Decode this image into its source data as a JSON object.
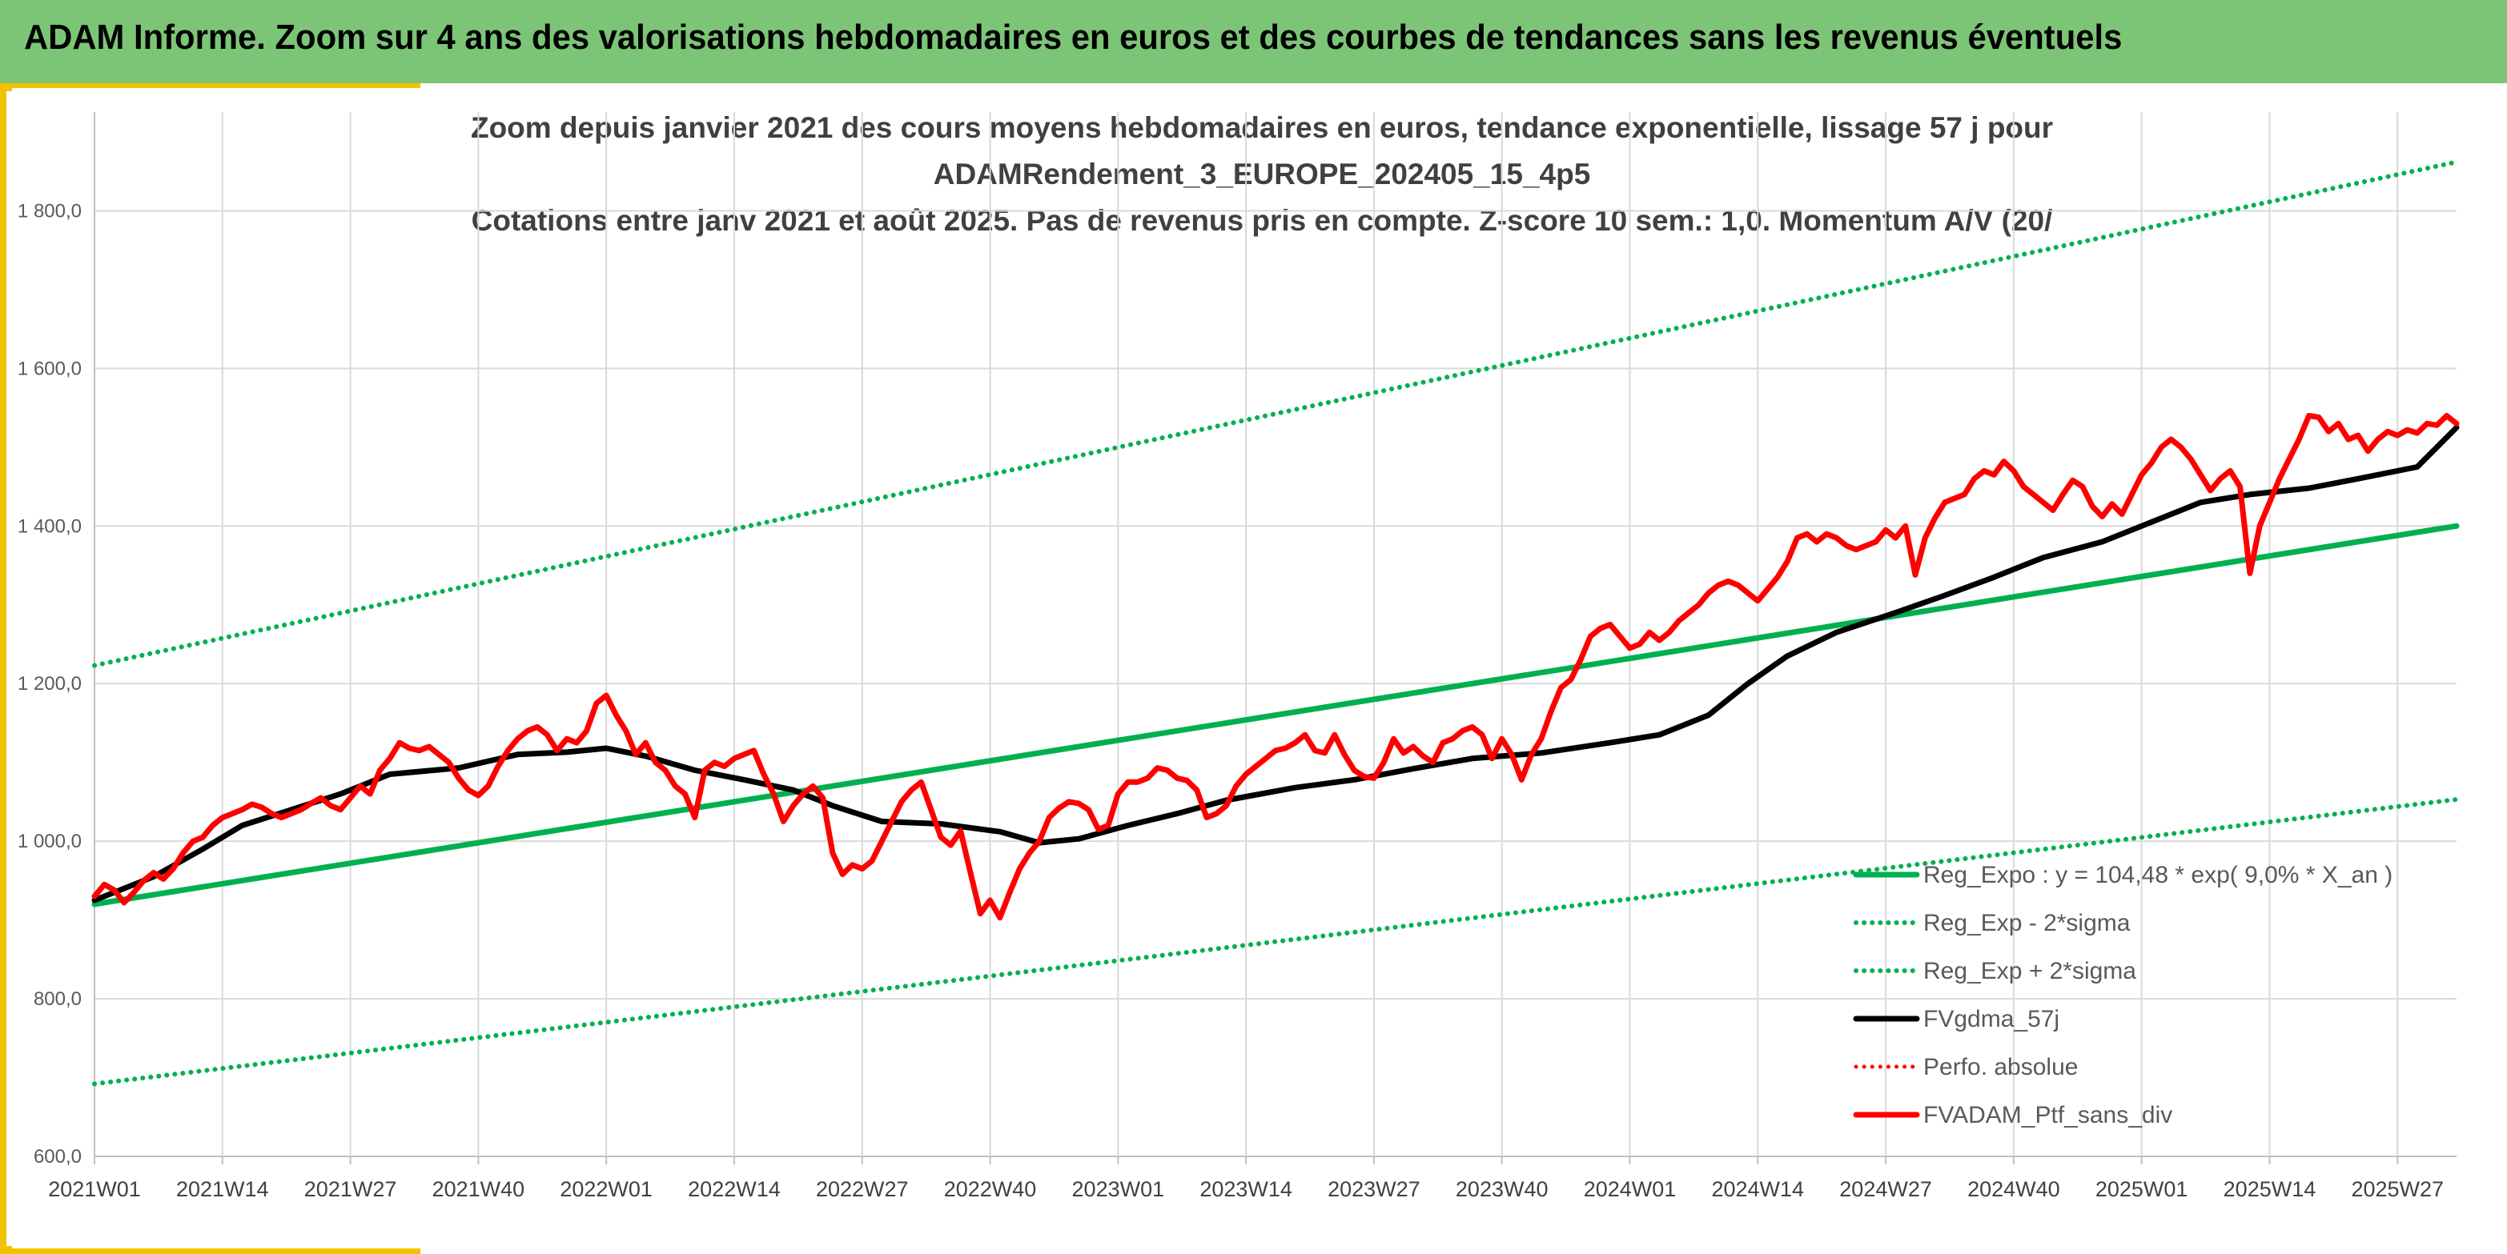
{
  "banner": {
    "title": "ADAM Informe. Zoom sur 4 ans des valorisations hebdomadaires en euros et des courbes de tendances sans les revenus éventuels",
    "bg_color": "#7cc576",
    "accent_color": "#f2c200"
  },
  "chart_data": {
    "type": "line",
    "title_lines": [
      "Zoom depuis janvier 2021 des cours moyens hebdomadaires en euros, tendance exponentielle, lissage 57 j pour",
      "ADAMRendement_3_EUROPE_202405_15_4p5",
      "Cotations entre janv 2021 et août 2025. Pas de revenus pris en compte. Z-score 10 sem.: 1,0. Momentum A/V (20/"
    ],
    "ylim": [
      600,
      1900
    ],
    "y_ticks": [
      "600,0",
      "800,0",
      "1 000,0",
      "1 200,0",
      "1 400,0",
      "1 600,0",
      "1 800,0"
    ],
    "y_tick_values": [
      600,
      800,
      1000,
      1200,
      1400,
      1600,
      1800
    ],
    "x_ticks": [
      "2021W01",
      "2021W14",
      "2021W27",
      "2021W40",
      "2022W01",
      "2022W14",
      "2022W27",
      "2022W40",
      "2023W01",
      "2023W14",
      "2023W27",
      "2023W40",
      "2024W01",
      "2024W14",
      "2024W27",
      "2024W40",
      "2025W01",
      "2025W14",
      "2025W27"
    ],
    "grid": true,
    "legend_position": "bottom-right",
    "series": [
      {
        "name": "Reg_Expo : y = 104,48 * exp( 9,0% *  X_an )",
        "style": "solid",
        "color": "#00b050",
        "points": [
          [
            0,
            920
          ],
          [
            240,
            1400
          ]
        ]
      },
      {
        "name": "Reg_Exp - 2*sigma",
        "style": "dotted",
        "color": "#00b050",
        "points": [
          [
            0,
            692
          ],
          [
            240,
            1053
          ]
        ]
      },
      {
        "name": "Reg_Exp + 2*sigma",
        "style": "dotted",
        "color": "#00b050",
        "points": [
          [
            0,
            1223
          ],
          [
            240,
            1862
          ]
        ]
      },
      {
        "name": "FVgdma_57j",
        "style": "solid",
        "color": "#000000",
        "points": [
          [
            0,
            925
          ],
          [
            6,
            955
          ],
          [
            11,
            990
          ],
          [
            15,
            1020
          ],
          [
            20,
            1040
          ],
          [
            25,
            1060
          ],
          [
            30,
            1085
          ],
          [
            37,
            1093
          ],
          [
            43,
            1110
          ],
          [
            48,
            1113
          ],
          [
            52,
            1118
          ],
          [
            56,
            1108
          ],
          [
            61,
            1090
          ],
          [
            66,
            1078
          ],
          [
            71,
            1065
          ],
          [
            75,
            1045
          ],
          [
            80,
            1025
          ],
          [
            86,
            1022
          ],
          [
            92,
            1012
          ],
          [
            96,
            998
          ],
          [
            100,
            1003
          ],
          [
            105,
            1020
          ],
          [
            110,
            1035
          ],
          [
            115,
            1052
          ],
          [
            122,
            1068
          ],
          [
            128,
            1078
          ],
          [
            134,
            1092
          ],
          [
            140,
            1105
          ],
          [
            147,
            1112
          ],
          [
            154,
            1125
          ],
          [
            159,
            1135
          ],
          [
            164,
            1160
          ],
          [
            168,
            1200
          ],
          [
            172,
            1235
          ],
          [
            177,
            1265
          ],
          [
            183,
            1290
          ],
          [
            188,
            1312
          ],
          [
            193,
            1335
          ],
          [
            198,
            1360
          ],
          [
            204,
            1380
          ],
          [
            209,
            1405
          ],
          [
            214,
            1430
          ],
          [
            219,
            1440
          ],
          [
            225,
            1448
          ],
          [
            230,
            1460
          ],
          [
            236,
            1475
          ],
          [
            240,
            1525
          ]
        ]
      },
      {
        "name": "Perfo. absolue",
        "style": "dotted",
        "color": "#ff0000",
        "points": []
      },
      {
        "name": "FVADAM_Ptf_sans_div",
        "style": "solid",
        "color": "#ff0000",
        "points": [
          [
            0,
            930
          ],
          [
            1,
            945
          ],
          [
            2,
            938
          ],
          [
            3,
            922
          ],
          [
            4,
            935
          ],
          [
            5,
            950
          ],
          [
            6,
            960
          ],
          [
            7,
            952
          ],
          [
            8,
            965
          ],
          [
            9,
            985
          ],
          [
            10,
            1000
          ],
          [
            11,
            1005
          ],
          [
            12,
            1020
          ],
          [
            13,
            1030
          ],
          [
            14,
            1035
          ],
          [
            15,
            1040
          ],
          [
            16,
            1047
          ],
          [
            17,
            1043
          ],
          [
            18,
            1035
          ],
          [
            19,
            1030
          ],
          [
            20,
            1035
          ],
          [
            21,
            1040
          ],
          [
            22,
            1048
          ],
          [
            23,
            1055
          ],
          [
            24,
            1045
          ],
          [
            25,
            1040
          ],
          [
            26,
            1055
          ],
          [
            27,
            1070
          ],
          [
            28,
            1060
          ],
          [
            29,
            1090
          ],
          [
            30,
            1105
          ],
          [
            31,
            1125
          ],
          [
            32,
            1118
          ],
          [
            33,
            1115
          ],
          [
            34,
            1120
          ],
          [
            35,
            1110
          ],
          [
            36,
            1100
          ],
          [
            37,
            1080
          ],
          [
            38,
            1065
          ],
          [
            39,
            1058
          ],
          [
            40,
            1070
          ],
          [
            41,
            1095
          ],
          [
            42,
            1115
          ],
          [
            43,
            1130
          ],
          [
            44,
            1140
          ],
          [
            45,
            1145
          ],
          [
            46,
            1135
          ],
          [
            47,
            1115
          ],
          [
            48,
            1130
          ],
          [
            49,
            1125
          ],
          [
            50,
            1140
          ],
          [
            51,
            1175
          ],
          [
            52,
            1185
          ],
          [
            53,
            1160
          ],
          [
            54,
            1140
          ],
          [
            55,
            1110
          ],
          [
            56,
            1125
          ],
          [
            57,
            1100
          ],
          [
            58,
            1090
          ],
          [
            59,
            1070
          ],
          [
            60,
            1060
          ],
          [
            61,
            1030
          ],
          [
            62,
            1090
          ],
          [
            63,
            1100
          ],
          [
            64,
            1095
          ],
          [
            65,
            1105
          ],
          [
            66,
            1110
          ],
          [
            67,
            1115
          ],
          [
            68,
            1085
          ],
          [
            69,
            1060
          ],
          [
            70,
            1025
          ],
          [
            71,
            1045
          ],
          [
            72,
            1060
          ],
          [
            73,
            1070
          ],
          [
            74,
            1055
          ],
          [
            75,
            985
          ],
          [
            76,
            958
          ],
          [
            77,
            970
          ],
          [
            78,
            965
          ],
          [
            79,
            975
          ],
          [
            80,
            1000
          ],
          [
            81,
            1025
          ],
          [
            82,
            1050
          ],
          [
            83,
            1065
          ],
          [
            84,
            1075
          ],
          [
            85,
            1040
          ],
          [
            86,
            1005
          ],
          [
            87,
            995
          ],
          [
            88,
            1013
          ],
          [
            89,
            960
          ],
          [
            90,
            908
          ],
          [
            91,
            925
          ],
          [
            92,
            903
          ],
          [
            93,
            935
          ],
          [
            94,
            965
          ],
          [
            95,
            985
          ],
          [
            96,
            1000
          ],
          [
            97,
            1030
          ],
          [
            98,
            1042
          ],
          [
            99,
            1050
          ],
          [
            100,
            1048
          ],
          [
            101,
            1040
          ],
          [
            102,
            1015
          ],
          [
            103,
            1020
          ],
          [
            104,
            1060
          ],
          [
            105,
            1075
          ],
          [
            106,
            1075
          ],
          [
            107,
            1080
          ],
          [
            108,
            1093
          ],
          [
            109,
            1090
          ],
          [
            110,
            1080
          ],
          [
            111,
            1077
          ],
          [
            112,
            1065
          ],
          [
            113,
            1030
          ],
          [
            114,
            1035
          ],
          [
            115,
            1045
          ],
          [
            116,
            1070
          ],
          [
            117,
            1085
          ],
          [
            118,
            1095
          ],
          [
            119,
            1105
          ],
          [
            120,
            1115
          ],
          [
            121,
            1118
          ],
          [
            122,
            1125
          ],
          [
            123,
            1135
          ],
          [
            124,
            1115
          ],
          [
            125,
            1112
          ],
          [
            126,
            1135
          ],
          [
            127,
            1110
          ],
          [
            128,
            1090
          ],
          [
            129,
            1082
          ],
          [
            130,
            1080
          ],
          [
            131,
            1100
          ],
          [
            132,
            1130
          ],
          [
            133,
            1112
          ],
          [
            134,
            1120
          ],
          [
            135,
            1108
          ],
          [
            136,
            1100
          ],
          [
            137,
            1125
          ],
          [
            138,
            1130
          ],
          [
            139,
            1140
          ],
          [
            140,
            1145
          ],
          [
            141,
            1135
          ],
          [
            142,
            1105
          ],
          [
            143,
            1130
          ],
          [
            144,
            1110
          ],
          [
            145,
            1078
          ],
          [
            146,
            1110
          ],
          [
            147,
            1130
          ],
          [
            148,
            1165
          ],
          [
            149,
            1195
          ],
          [
            150,
            1205
          ],
          [
            151,
            1230
          ],
          [
            152,
            1260
          ],
          [
            153,
            1270
          ],
          [
            154,
            1275
          ],
          [
            155,
            1260
          ],
          [
            156,
            1245
          ],
          [
            157,
            1250
          ],
          [
            158,
            1265
          ],
          [
            159,
            1255
          ],
          [
            160,
            1265
          ],
          [
            161,
            1280
          ],
          [
            162,
            1290
          ],
          [
            163,
            1300
          ],
          [
            164,
            1315
          ],
          [
            165,
            1325
          ],
          [
            166,
            1330
          ],
          [
            167,
            1325
          ],
          [
            168,
            1315
          ],
          [
            169,
            1305
          ],
          [
            170,
            1320
          ],
          [
            171,
            1335
          ],
          [
            172,
            1355
          ],
          [
            173,
            1385
          ],
          [
            174,
            1390
          ],
          [
            175,
            1380
          ],
          [
            176,
            1390
          ],
          [
            177,
            1385
          ],
          [
            178,
            1375
          ],
          [
            179,
            1370
          ],
          [
            180,
            1375
          ],
          [
            181,
            1380
          ],
          [
            182,
            1395
          ],
          [
            183,
            1385
          ],
          [
            184,
            1400
          ],
          [
            185,
            1338
          ],
          [
            186,
            1385
          ],
          [
            187,
            1410
          ],
          [
            188,
            1430
          ],
          [
            189,
            1435
          ],
          [
            190,
            1440
          ],
          [
            191,
            1460
          ],
          [
            192,
            1470
          ],
          [
            193,
            1465
          ],
          [
            194,
            1482
          ],
          [
            195,
            1470
          ],
          [
            196,
            1450
          ],
          [
            197,
            1440
          ],
          [
            198,
            1430
          ],
          [
            199,
            1420
          ],
          [
            200,
            1440
          ],
          [
            201,
            1458
          ],
          [
            202,
            1450
          ],
          [
            203,
            1425
          ],
          [
            204,
            1412
          ],
          [
            205,
            1428
          ],
          [
            206,
            1415
          ],
          [
            207,
            1440
          ],
          [
            208,
            1465
          ],
          [
            209,
            1480
          ],
          [
            210,
            1500
          ],
          [
            211,
            1510
          ],
          [
            212,
            1500
          ],
          [
            213,
            1485
          ],
          [
            214,
            1465
          ],
          [
            215,
            1445
          ],
          [
            216,
            1460
          ],
          [
            217,
            1470
          ],
          [
            218,
            1450
          ],
          [
            219,
            1340
          ],
          [
            220,
            1400
          ],
          [
            221,
            1430
          ],
          [
            222,
            1460
          ],
          [
            223,
            1485
          ],
          [
            224,
            1510
          ],
          [
            225,
            1540
          ],
          [
            226,
            1538
          ],
          [
            227,
            1520
          ],
          [
            228,
            1530
          ],
          [
            229,
            1510
          ],
          [
            230,
            1515
          ],
          [
            231,
            1495
          ],
          [
            232,
            1510
          ],
          [
            233,
            1520
          ],
          [
            234,
            1515
          ],
          [
            235,
            1522
          ],
          [
            236,
            1518
          ],
          [
            237,
            1530
          ],
          [
            238,
            1528
          ],
          [
            239,
            1540
          ],
          [
            240,
            1530
          ]
        ]
      }
    ]
  }
}
